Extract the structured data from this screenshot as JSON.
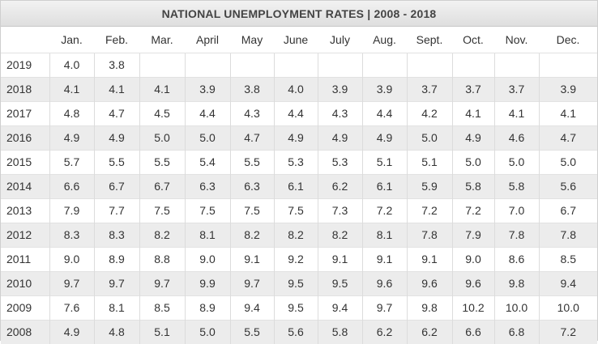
{
  "chart_data": {
    "type": "table",
    "title": "NATIONAL UNEMPLOYMENT RATES | 2008 - 2018",
    "columns": [
      "",
      "Jan.",
      "Feb.",
      "Mar.",
      "April",
      "May",
      "June",
      "July",
      "Aug.",
      "Sept.",
      "Oct.",
      "Nov.",
      "Dec."
    ],
    "rows": [
      {
        "year": "2019",
        "values": [
          "4.0",
          "3.8",
          "",
          "",
          "",
          "",
          "",
          "",
          "",
          "",
          "",
          ""
        ]
      },
      {
        "year": "2018",
        "values": [
          "4.1",
          "4.1",
          "4.1",
          "3.9",
          "3.8",
          "4.0",
          "3.9",
          "3.9",
          "3.7",
          "3.7",
          "3.7",
          "3.9"
        ]
      },
      {
        "year": "2017",
        "values": [
          "4.8",
          "4.7",
          "4.5",
          "4.4",
          "4.3",
          "4.4",
          "4.3",
          "4.4",
          "4.2",
          "4.1",
          "4.1",
          "4.1"
        ]
      },
      {
        "year": "2016",
        "values": [
          "4.9",
          "4.9",
          "5.0",
          "5.0",
          "4.7",
          "4.9",
          "4.9",
          "4.9",
          "5.0",
          "4.9",
          "4.6",
          "4.7"
        ]
      },
      {
        "year": "2015",
        "values": [
          "5.7",
          "5.5",
          "5.5",
          "5.4",
          "5.5",
          "5.3",
          "5.3",
          "5.1",
          "5.1",
          "5.0",
          "5.0",
          "5.0"
        ]
      },
      {
        "year": "2014",
        "values": [
          "6.6",
          "6.7",
          "6.7",
          "6.3",
          "6.3",
          "6.1",
          "6.2",
          "6.1",
          "5.9",
          "5.8",
          "5.8",
          "5.6"
        ]
      },
      {
        "year": "2013",
        "values": [
          "7.9",
          "7.7",
          "7.5",
          "7.5",
          "7.5",
          "7.5",
          "7.3",
          "7.2",
          "7.2",
          "7.2",
          "7.0",
          "6.7"
        ]
      },
      {
        "year": "2012",
        "values": [
          "8.3",
          "8.3",
          "8.2",
          "8.1",
          "8.2",
          "8.2",
          "8.2",
          "8.1",
          "7.8",
          "7.9",
          "7.8",
          "7.8"
        ]
      },
      {
        "year": "2011",
        "values": [
          "9.0",
          "8.9",
          "8.8",
          "9.0",
          "9.1",
          "9.2",
          "9.1",
          "9.1",
          "9.1",
          "9.0",
          "8.6",
          "8.5"
        ]
      },
      {
        "year": "2010",
        "values": [
          "9.7",
          "9.7",
          "9.7",
          "9.9",
          "9.7",
          "9.5",
          "9.5",
          "9.6",
          "9.6",
          "9.6",
          "9.8",
          "9.4"
        ]
      },
      {
        "year": "2009",
        "values": [
          "7.6",
          "8.1",
          "8.5",
          "8.9",
          "9.4",
          "9.5",
          "9.4",
          "9.7",
          "9.8",
          "10.2",
          "10.0",
          "10.0"
        ]
      },
      {
        "year": "2008",
        "values": [
          "4.9",
          "4.8",
          "5.1",
          "5.0",
          "5.5",
          "5.6",
          "5.8",
          "6.2",
          "6.2",
          "6.6",
          "6.8",
          "7.2"
        ]
      }
    ]
  }
}
